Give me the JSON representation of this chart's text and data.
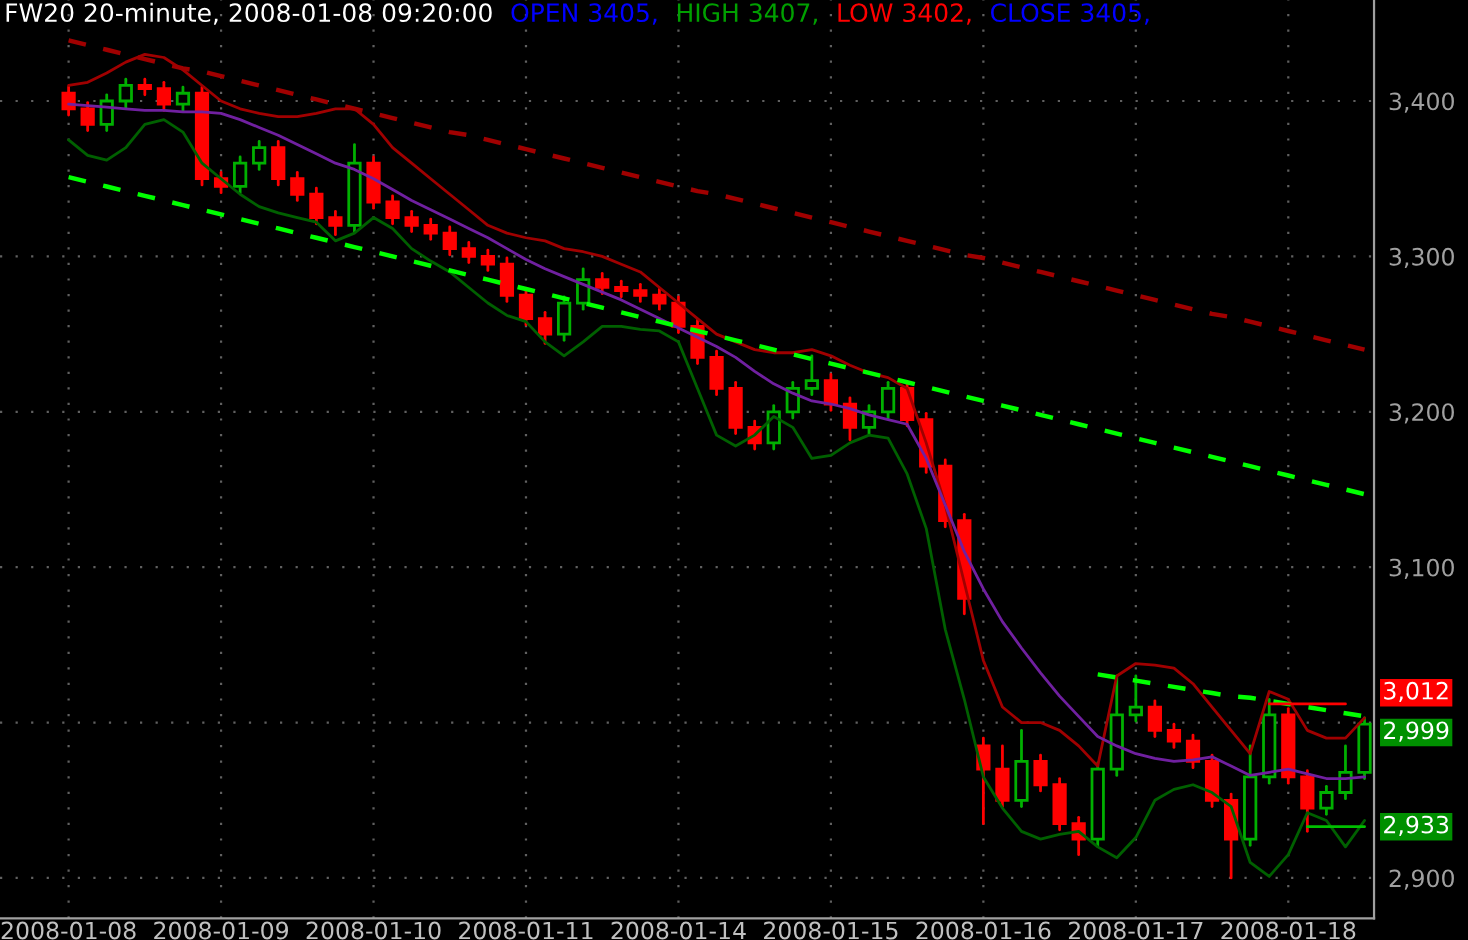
{
  "chart_data": {
    "type": "candlestick",
    "title": "FW20 20-minute, 2008-01-08 09:20:00",
    "annotations": [
      "OPEN 3405,",
      "HIGH 3407,",
      "LOW 3402,",
      "CLOSE 3405,",
      "3,012",
      "2,999",
      "2,933"
    ],
    "categories": [
      "2008-01-08",
      null,
      null,
      null,
      null,
      null,
      null,
      null,
      "2008-01-09",
      null,
      null,
      null,
      null,
      null,
      null,
      null,
      "2008-01-10",
      null,
      null,
      null,
      null,
      null,
      null,
      null,
      "2008-01-11",
      null,
      null,
      null,
      null,
      null,
      null,
      null,
      "2008-01-14",
      null,
      null,
      null,
      null,
      null,
      null,
      null,
      "2008-01-15",
      null,
      null,
      null,
      null,
      null,
      null,
      null,
      "2008-01-16",
      null,
      null,
      null,
      null,
      null,
      null,
      null,
      "2008-01-17",
      null,
      null,
      null,
      null,
      null,
      null,
      null,
      "2008-01-18",
      null,
      null,
      null,
      null
    ],
    "ohlc": [
      [
        3405,
        3409,
        3391,
        3395
      ],
      [
        3395,
        3399,
        3381,
        3385
      ],
      [
        3385,
        3404,
        3381,
        3400
      ],
      [
        3400,
        3414,
        3396,
        3410
      ],
      [
        3410,
        3414,
        3404,
        3408
      ],
      [
        3408,
        3412,
        3394,
        3398
      ],
      [
        3398,
        3409,
        3394,
        3405
      ],
      [
        3405,
        3409,
        3346,
        3350
      ],
      [
        3350,
        3354,
        3341,
        3345
      ],
      [
        3345,
        3364,
        3341,
        3360
      ],
      [
        3360,
        3374,
        3356,
        3370
      ],
      [
        3370,
        3374,
        3346,
        3350
      ],
      [
        3350,
        3354,
        3336,
        3340
      ],
      [
        3340,
        3344,
        3321,
        3325
      ],
      [
        3325,
        3329,
        3314,
        3320
      ],
      [
        3320,
        3372,
        3316,
        3360
      ],
      [
        3360,
        3364,
        3331,
        3335
      ],
      [
        3335,
        3339,
        3321,
        3325
      ],
      [
        3325,
        3329,
        3316,
        3320
      ],
      [
        3320,
        3324,
        3311,
        3315
      ],
      [
        3315,
        3319,
        3301,
        3305
      ],
      [
        3305,
        3309,
        3296,
        3300
      ],
      [
        3300,
        3304,
        3291,
        3295
      ],
      [
        3295,
        3299,
        3271,
        3275
      ],
      [
        3275,
        3279,
        3256,
        3260
      ],
      [
        3260,
        3264,
        3244,
        3250
      ],
      [
        3250,
        3274,
        3246,
        3270
      ],
      [
        3270,
        3292,
        3266,
        3285
      ],
      [
        3285,
        3289,
        3276,
        3280
      ],
      [
        3280,
        3284,
        3274,
        3278
      ],
      [
        3278,
        3282,
        3271,
        3275
      ],
      [
        3275,
        3279,
        3266,
        3270
      ],
      [
        3270,
        3274,
        3251,
        3255
      ],
      [
        3255,
        3259,
        3231,
        3235
      ],
      [
        3235,
        3239,
        3211,
        3215
      ],
      [
        3215,
        3219,
        3186,
        3190
      ],
      [
        3190,
        3194,
        3176,
        3180
      ],
      [
        3180,
        3204,
        3176,
        3200
      ],
      [
        3200,
        3219,
        3196,
        3215
      ],
      [
        3215,
        3236,
        3211,
        3220
      ],
      [
        3220,
        3224,
        3201,
        3205
      ],
      [
        3205,
        3209,
        3182,
        3190
      ],
      [
        3190,
        3204,
        3186,
        3200
      ],
      [
        3200,
        3219,
        3196,
        3215
      ],
      [
        3215,
        3219,
        3191,
        3195
      ],
      [
        3195,
        3199,
        3161,
        3165
      ],
      [
        3165,
        3169,
        3126,
        3130
      ],
      [
        3130,
        3134,
        3070,
        3080
      ],
      [
        2985,
        2990,
        2935,
        2970
      ],
      [
        2970,
        2985,
        2946,
        2950
      ],
      [
        2950,
        2995,
        2946,
        2975
      ],
      [
        2975,
        2979,
        2956,
        2960
      ],
      [
        2960,
        2964,
        2931,
        2935
      ],
      [
        2935,
        2939,
        2915,
        2925
      ],
      [
        2925,
        2974,
        2921,
        2970
      ],
      [
        2970,
        3030,
        2966,
        3005
      ],
      [
        3005,
        3030,
        3001,
        3010
      ],
      [
        3010,
        3014,
        2991,
        2995
      ],
      [
        2995,
        2999,
        2984,
        2988
      ],
      [
        2988,
        2992,
        2971,
        2975
      ],
      [
        2975,
        2979,
        2946,
        2950
      ],
      [
        2950,
        2954,
        2900,
        2925
      ],
      [
        2925,
        2985,
        2921,
        2965
      ],
      [
        2965,
        3015,
        2961,
        3005
      ],
      [
        3005,
        3009,
        2961,
        2965
      ],
      [
        2965,
        2969,
        2930,
        2945
      ],
      [
        2945,
        2959,
        2941,
        2955
      ],
      [
        2955,
        2985,
        2951,
        2968
      ],
      [
        2968,
        3003,
        2964,
        2999
      ]
    ],
    "colors": [
      "#ff0000",
      "#ff0000",
      "#00b000",
      "#00b000",
      "#ff0000",
      "#ff0000",
      "#00b000",
      "#ff0000",
      "#ff0000",
      "#00b000",
      "#00b000",
      "#ff0000",
      "#ff0000",
      "#ff0000",
      "#ff0000",
      "#00b000",
      "#ff0000",
      "#ff0000",
      "#ff0000",
      "#ff0000",
      "#ff0000",
      "#ff0000",
      "#ff0000",
      "#ff0000",
      "#ff0000",
      "#ff0000",
      "#00b000",
      "#00b000",
      "#ff0000",
      "#ff0000",
      "#ff0000",
      "#ff0000",
      "#ff0000",
      "#ff0000",
      "#ff0000",
      "#ff0000",
      "#ff0000",
      "#00b000",
      "#00b000",
      "#00b000",
      "#ff0000",
      "#ff0000",
      "#00b000",
      "#00b000",
      "#ff0000",
      "#ff0000",
      "#ff0000",
      "#ff0000",
      "#ff0000",
      "#ff0000",
      "#00b000",
      "#ff0000",
      "#ff0000",
      "#ff0000",
      "#00b000",
      "#00b000",
      "#00b000",
      "#ff0000",
      "#ff0000",
      "#ff0000",
      "#ff0000",
      "#ff0000",
      "#00b000",
      "#00b000",
      "#ff0000",
      "#ff0000",
      "#00b000",
      "#00b000",
      "#00b000"
    ],
    "series": [
      {
        "type": "line",
        "color": "#a00000",
        "values": [
          3410,
          3412,
          3418,
          3425,
          3430,
          3428,
          3420,
          3410,
          3400,
          3395,
          3392,
          3390,
          3390,
          3392,
          3395,
          3395,
          3385,
          3370,
          3360,
          3350,
          3340,
          3330,
          3320,
          3315,
          3312,
          3310,
          3305,
          3303,
          3300,
          3295,
          3290,
          3280,
          3270,
          3260,
          3250,
          3245,
          3240,
          3238,
          3238,
          3240,
          3236,
          3230,
          3225,
          3222,
          3215,
          3180,
          3140,
          3090,
          3040,
          3010,
          3000,
          3000,
          2995,
          2985,
          2972,
          3030,
          3038,
          3037,
          3035,
          3025,
          3010,
          2995,
          2980,
          3020,
          3015,
          2995,
          2990,
          2990,
          3003
        ]
      },
      {
        "type": "line",
        "color": "#006000",
        "values": [
          3375,
          3365,
          3362,
          3370,
          3385,
          3388,
          3380,
          3360,
          3350,
          3340,
          3332,
          3328,
          3325,
          3322,
          3310,
          3315,
          3325,
          3318,
          3305,
          3297,
          3290,
          3280,
          3270,
          3262,
          3258,
          3245,
          3236,
          3245,
          3255,
          3255,
          3253,
          3252,
          3245,
          3215,
          3185,
          3178,
          3185,
          3197,
          3190,
          3170,
          3172,
          3180,
          3185,
          3183,
          3160,
          3125,
          3060,
          3015,
          2965,
          2945,
          2930,
          2925,
          2928,
          2930,
          2920,
          2913,
          2926,
          2950,
          2957,
          2960,
          2955,
          2946,
          2910,
          2901,
          2915,
          2942,
          2937,
          2920,
          2937
        ]
      },
      {
        "type": "line",
        "color": "#7020a0",
        "values": [
          3398,
          3397,
          3396,
          3395,
          3394,
          3394,
          3393,
          3393,
          3392,
          3388,
          3383,
          3378,
          3372,
          3366,
          3360,
          3356,
          3350,
          3343,
          3336,
          3330,
          3324,
          3318,
          3312,
          3305,
          3298,
          3292,
          3287,
          3282,
          3277,
          3272,
          3266,
          3260,
          3254,
          3248,
          3242,
          3235,
          3226,
          3218,
          3212,
          3207,
          3205,
          3202,
          3198,
          3195,
          3192,
          3170,
          3140,
          3110,
          3086,
          3065,
          3048,
          3032,
          3017,
          3004,
          2991,
          2985,
          2980,
          2977,
          2975,
          2976,
          2978,
          2972,
          2966,
          2968,
          2970,
          2967,
          2964,
          2964,
          2965
        ]
      },
      {
        "type": "line",
        "color": "#a00000",
        "line_style": "dashed",
        "values": [
          3439,
          3436,
          3433,
          3430,
          3427,
          3424,
          3421,
          3419,
          3416,
          3413,
          3410,
          3407,
          3404,
          3401,
          3398,
          3395,
          3392,
          3389,
          3386,
          3383,
          3380,
          3378,
          3375,
          3372,
          3369,
          3366,
          3363,
          3360,
          3357,
          3354,
          3351,
          3348,
          3345,
          3342,
          3340,
          3337,
          3334,
          3331,
          3328,
          3325,
          3322,
          3319,
          3316,
          3313,
          3310,
          3307,
          3304,
          3301,
          3299,
          3296,
          3293,
          3290,
          3287,
          3284,
          3281,
          3278,
          3275,
          3272,
          3269,
          3266,
          3263,
          3261,
          3258,
          3255,
          3252,
          3249,
          3246,
          3243,
          3240
        ]
      },
      {
        "type": "line",
        "color": "#00ff00",
        "line_style": "dashed",
        "values": [
          3351,
          3348,
          3345,
          3342,
          3339,
          3336,
          3333,
          3330,
          3327,
          3324,
          3321,
          3318,
          3315,
          3312,
          3309,
          3306,
          3303,
          3300,
          3297,
          3294,
          3291,
          3288,
          3285,
          3282,
          3279,
          3276,
          3273,
          3270,
          3267,
          3264,
          3261,
          3258,
          3255,
          3252,
          3249,
          3246,
          3243,
          3240,
          3237,
          3234,
          3231,
          3228,
          3225,
          3222,
          3219,
          3216,
          3213,
          3210,
          3207,
          3204,
          3201,
          3198,
          3195,
          3192,
          3189,
          3186,
          3183,
          3180,
          3177,
          3174,
          3171,
          3168,
          3165,
          3162,
          3159,
          3156,
          3153,
          3150,
          3147
        ]
      },
      {
        "type": "line",
        "color": "#00ff00",
        "line_style": "dashed",
        "values": [
          null,
          null,
          null,
          null,
          null,
          null,
          null,
          null,
          null,
          null,
          null,
          null,
          null,
          null,
          null,
          null,
          null,
          null,
          null,
          null,
          null,
          null,
          null,
          null,
          null,
          null,
          null,
          null,
          null,
          null,
          null,
          null,
          null,
          null,
          null,
          null,
          null,
          null,
          null,
          null,
          null,
          null,
          null,
          null,
          null,
          null,
          null,
          null,
          null,
          null,
          null,
          null,
          null,
          null,
          3031,
          3029,
          3027,
          3025,
          3023,
          3021,
          3019,
          3017,
          3016,
          3014,
          3012,
          3010,
          3008,
          3006,
          3004
        ]
      },
      {
        "type": "line",
        "color": "#ff0000",
        "values": [
          null,
          null,
          null,
          null,
          null,
          null,
          null,
          null,
          null,
          null,
          null,
          null,
          null,
          null,
          null,
          null,
          null,
          null,
          null,
          null,
          null,
          null,
          null,
          null,
          null,
          null,
          null,
          null,
          null,
          null,
          null,
          null,
          null,
          null,
          null,
          null,
          null,
          null,
          null,
          null,
          null,
          null,
          null,
          null,
          null,
          null,
          null,
          null,
          null,
          null,
          null,
          null,
          null,
          null,
          null,
          null,
          null,
          null,
          null,
          null,
          null,
          null,
          null,
          3012,
          3012,
          3012,
          3012,
          3012,
          null
        ]
      },
      {
        "type": "line",
        "color": "#00c000",
        "values": [
          null,
          null,
          null,
          null,
          null,
          null,
          null,
          null,
          null,
          null,
          null,
          null,
          null,
          null,
          null,
          null,
          null,
          null,
          null,
          null,
          null,
          null,
          null,
          null,
          null,
          null,
          null,
          null,
          null,
          null,
          null,
          null,
          null,
          null,
          null,
          null,
          null,
          null,
          null,
          null,
          null,
          null,
          null,
          null,
          null,
          null,
          null,
          null,
          null,
          null,
          null,
          null,
          null,
          null,
          null,
          null,
          null,
          null,
          null,
          null,
          null,
          null,
          null,
          null,
          null,
          2933,
          2933,
          2933,
          2933
        ]
      }
    ],
    "ylim": [
      2874,
      3465
    ],
    "yticks": [
      {
        "value": 2900,
        "label": "2,900"
      },
      {
        "value": 3000,
        "label": null
      },
      {
        "value": 3100,
        "label": "3,100"
      },
      {
        "value": 3200,
        "label": "3,200"
      },
      {
        "value": 3300,
        "label": "3,300"
      },
      {
        "value": 3400,
        "label": "3,400"
      }
    ],
    "grid": true
  }
}
